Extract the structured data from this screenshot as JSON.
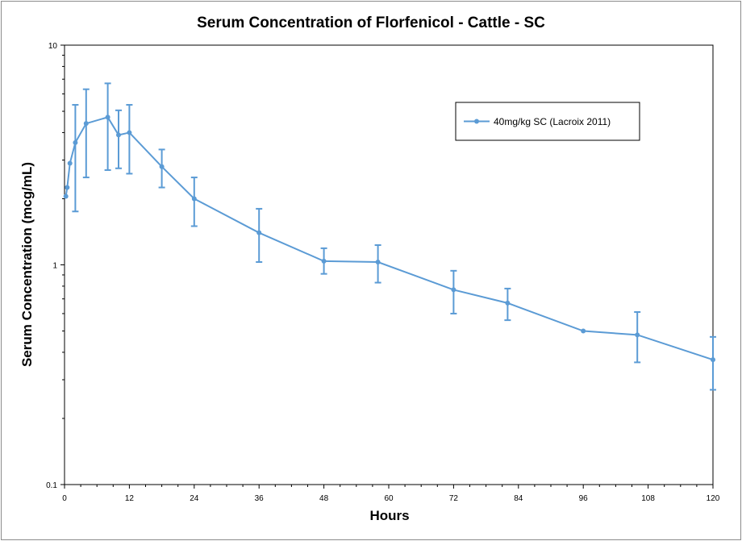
{
  "chart_data": {
    "type": "line",
    "title": "Serum Concentration of Florfenicol - Cattle - SC",
    "xlabel": "Hours",
    "ylabel": "Serum Concentration (mcg/mL)",
    "xlim": [
      0,
      120
    ],
    "ylim": [
      0.1,
      10
    ],
    "yscale": "log",
    "x_ticks": [
      "0",
      "12",
      "24",
      "36",
      "48",
      "60",
      "72",
      "84",
      "96",
      "108",
      "120"
    ],
    "y_ticks": [
      "10",
      "1",
      "0.1"
    ],
    "grid": false,
    "legend_position": "top-right",
    "series_color": "#5b9bd5",
    "series": [
      {
        "name": "40mg/kg SC (Lacroix 2011)",
        "points": [
          {
            "x": 0.25,
            "y": 2.05,
            "low": null,
            "high": null
          },
          {
            "x": 0.5,
            "y": 2.25,
            "low": null,
            "high": null
          },
          {
            "x": 1,
            "y": 2.9,
            "low": null,
            "high": null
          },
          {
            "x": 2,
            "y": 3.6,
            "low": 1.75,
            "high": 5.35
          },
          {
            "x": 4,
            "y": 4.4,
            "low": 2.5,
            "high": 6.3
          },
          {
            "x": 8,
            "y": 4.7,
            "low": 2.7,
            "high": 6.7
          },
          {
            "x": 10,
            "y": 3.9,
            "low": 2.75,
            "high": 5.05
          },
          {
            "x": 12,
            "y": 4.0,
            "low": 2.6,
            "high": 5.35
          },
          {
            "x": 18,
            "y": 2.8,
            "low": 2.25,
            "high": 3.35
          },
          {
            "x": 24,
            "y": 2.0,
            "low": 1.5,
            "high": 2.5
          },
          {
            "x": 36,
            "y": 1.4,
            "low": 1.03,
            "high": 1.8
          },
          {
            "x": 48,
            "y": 1.04,
            "low": 0.91,
            "high": 1.19
          },
          {
            "x": 58,
            "y": 1.03,
            "low": 0.83,
            "high": 1.23
          },
          {
            "x": 72,
            "y": 0.77,
            "low": 0.6,
            "high": 0.94
          },
          {
            "x": 82,
            "y": 0.67,
            "low": 0.56,
            "high": 0.78
          },
          {
            "x": 96,
            "y": 0.5,
            "low": null,
            "high": null
          },
          {
            "x": 106,
            "y": 0.48,
            "low": 0.36,
            "high": 0.61
          },
          {
            "x": 120,
            "y": 0.37,
            "low": 0.27,
            "high": 0.47
          }
        ]
      }
    ]
  }
}
